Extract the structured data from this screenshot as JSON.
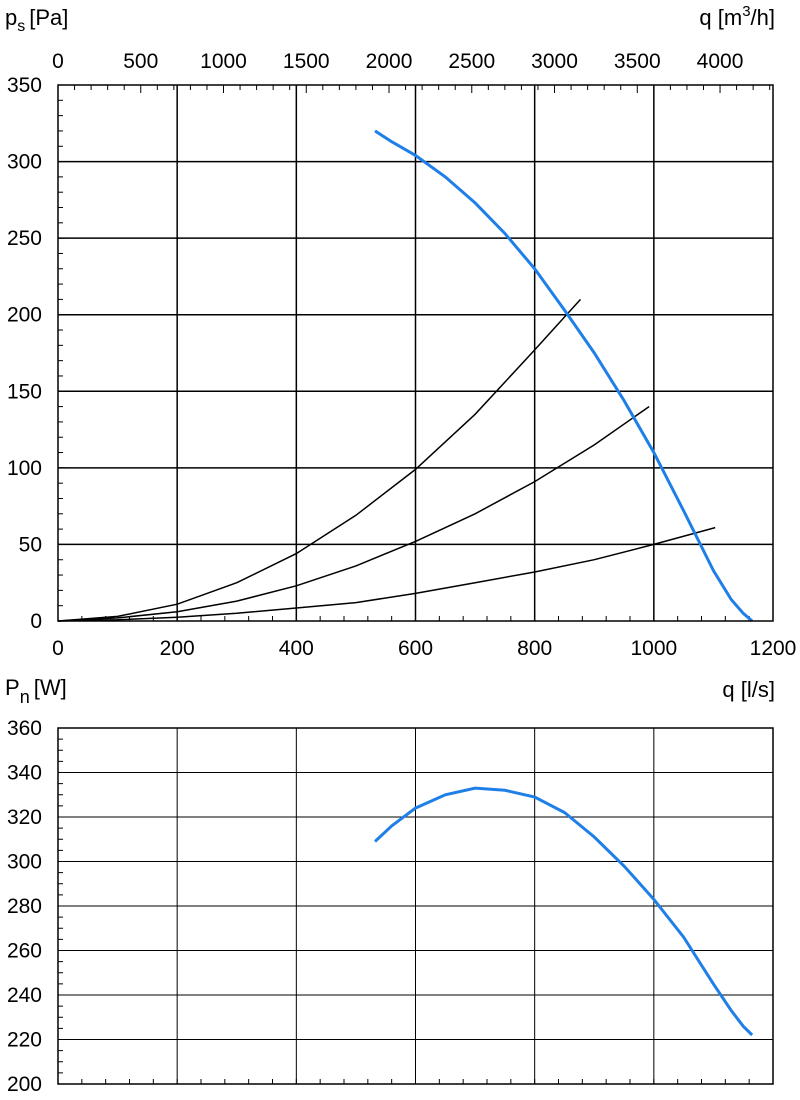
{
  "colors": {
    "curve": "#1f7fe8",
    "line": "#000000",
    "background": "#ffffff"
  },
  "chart_data": [
    {
      "type": "line",
      "y_axis_label": {
        "main": "p",
        "sub": "s",
        "unit": "[Pa]"
      },
      "top_axis_label": {
        "main": "q [m",
        "sup": "3",
        "end": "/h]"
      },
      "x_range": [
        0,
        1200
      ],
      "x_ticks": [
        0,
        200,
        400,
        600,
        800,
        1000,
        1200
      ],
      "top_axis_range_m3h": [
        0,
        4320
      ],
      "top_ticks": [
        0,
        500,
        1000,
        1500,
        2000,
        2500,
        3000,
        3500,
        4000
      ],
      "ylim": [
        0,
        350
      ],
      "y_ticks": [
        0,
        50,
        100,
        150,
        200,
        250,
        300,
        350
      ],
      "grid": true,
      "fan_curve": {
        "x": [
          532,
          560,
          600,
          650,
          700,
          750,
          800,
          850,
          900,
          950,
          1000,
          1050,
          1100,
          1130,
          1150,
          1165
        ],
        "y": [
          320,
          313,
          304,
          290,
          273,
          253,
          230,
          203,
          175,
          144,
          110,
          72,
          33,
          14,
          5,
          0
        ]
      },
      "system_curves": [
        {
          "x": [
            0,
            100,
            200,
            300,
            400,
            500,
            600,
            700,
            800,
            877
          ],
          "y": [
            0,
            3,
            11,
            25,
            44,
            69,
            99,
            135,
            177,
            210
          ]
        },
        {
          "x": [
            0,
            100,
            200,
            300,
            400,
            500,
            600,
            700,
            800,
            900,
            992
          ],
          "y": [
            0,
            2,
            6,
            13,
            23,
            36,
            52,
            70,
            91,
            115,
            140
          ]
        },
        {
          "x": [
            0,
            100,
            200,
            300,
            400,
            500,
            600,
            700,
            800,
            900,
            1000,
            1103
          ],
          "y": [
            0,
            0.8,
            2.5,
            5,
            8.5,
            12,
            18,
            25,
            32,
            40,
            50,
            61
          ]
        }
      ]
    },
    {
      "type": "line",
      "y_axis_label": {
        "main": "P",
        "sub": "n",
        "unit": "[W]"
      },
      "x_axis_label": "q [l/s]",
      "x_range": [
        0,
        1200
      ],
      "ylim": [
        200,
        360
      ],
      "y_ticks": [
        200,
        220,
        240,
        260,
        280,
        300,
        320,
        340,
        360
      ],
      "grid": true,
      "power_curve": {
        "x": [
          532,
          560,
          600,
          650,
          700,
          750,
          800,
          850,
          900,
          950,
          1000,
          1050,
          1100,
          1130,
          1150,
          1165
        ],
        "y": [
          309,
          316,
          324,
          330,
          333,
          332,
          329,
          322,
          311,
          298,
          283,
          266,
          245,
          233,
          226,
          222
        ]
      }
    }
  ]
}
